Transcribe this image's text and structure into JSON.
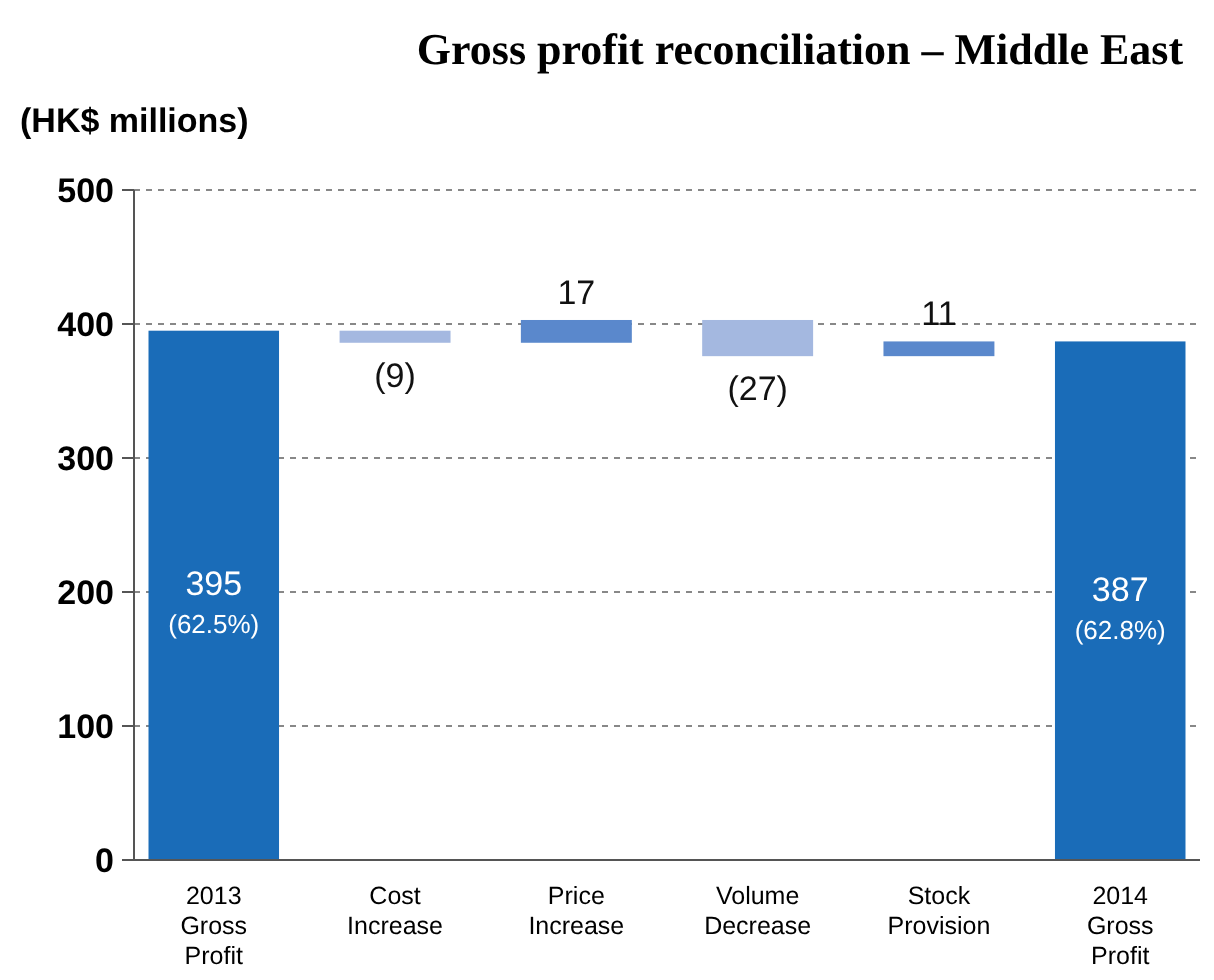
{
  "chart_data": {
    "type": "bar",
    "title": "Gross profit reconciliation – Middle East",
    "ylabel": "(HK$ millions)",
    "categories": [
      "2013 Gross Profit",
      "Cost Increase",
      "Price Increase",
      "Volume Decrease",
      "Stock Provision",
      "2014 Gross Profit"
    ],
    "values": [
      395,
      -9,
      17,
      -27,
      11,
      387
    ],
    "base": [
      0,
      395,
      386,
      403,
      376,
      0
    ],
    "colors": [
      "#1a6cb8",
      "#a4b8e0",
      "#5a88cc",
      "#a4b8e0",
      "#5a88cc",
      "#1a6cb8"
    ],
    "value_labels": [
      "395 (62.5%)",
      "(9)",
      "17",
      "(27)",
      "11",
      "387 (62.8%)"
    ],
    "ylim": [
      0,
      500
    ],
    "yticks": [
      0,
      100,
      200,
      300,
      400,
      500
    ],
    "grid": "y"
  }
}
